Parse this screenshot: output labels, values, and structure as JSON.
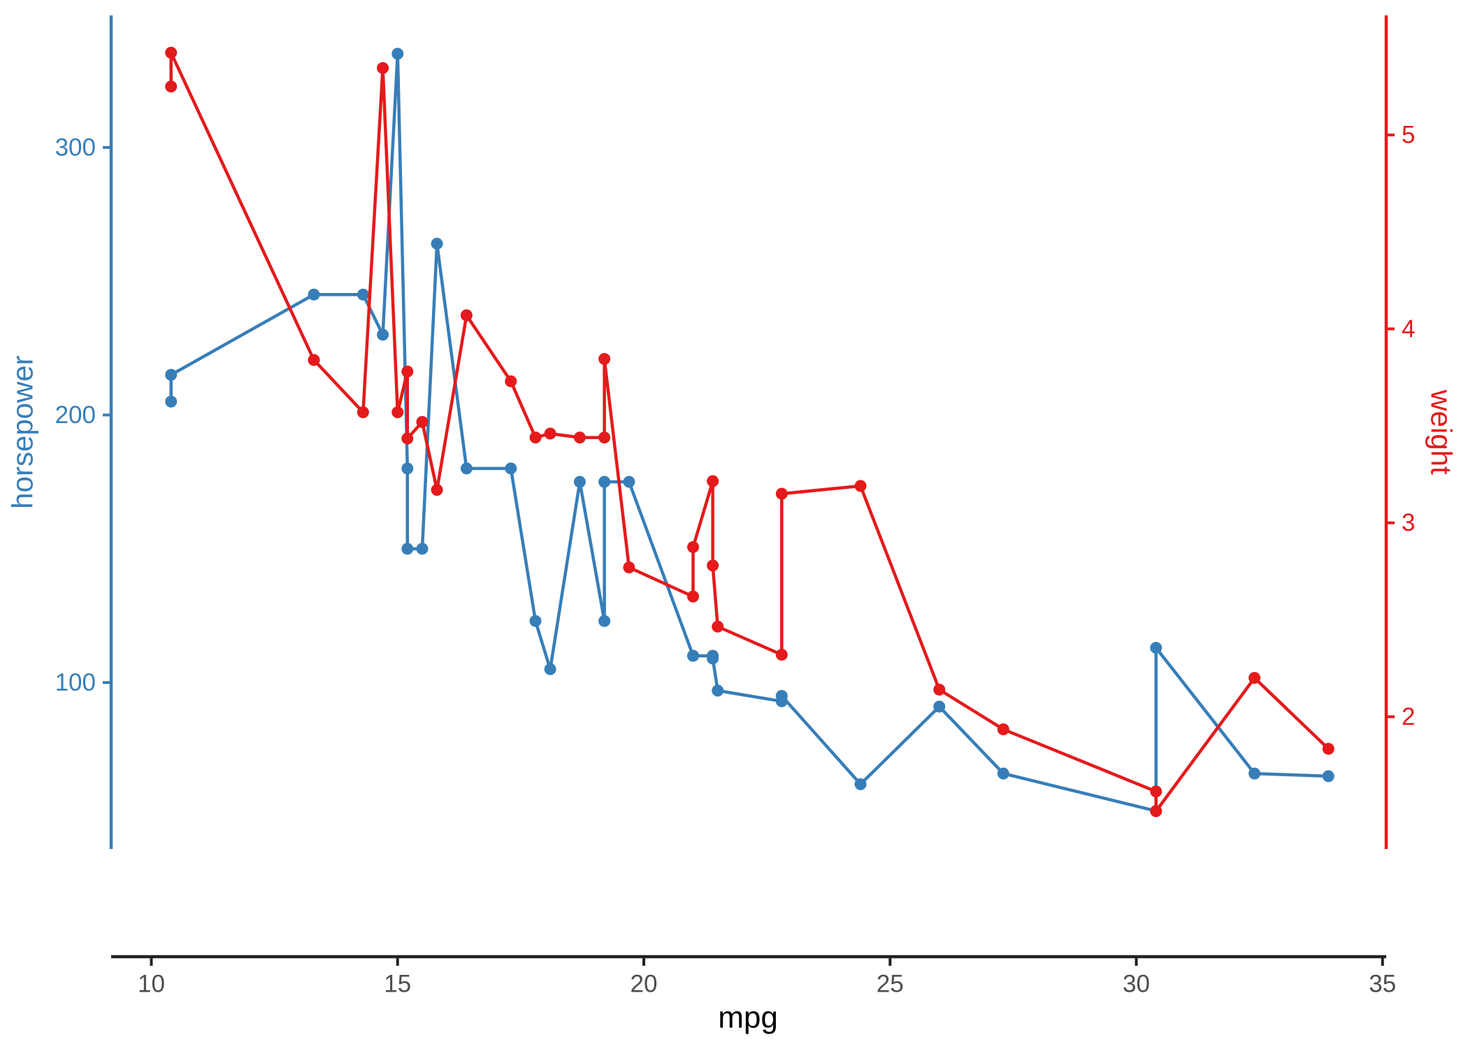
{
  "chart_data": {
    "type": "line",
    "description": "Dual-axis line+point chart of horsepower (left, blue) and weight (right, red) versus mpg",
    "x_axis": {
      "label": "mpg",
      "ticks": [
        10,
        15,
        20,
        25,
        30,
        35
      ],
      "domain": [
        9.2,
        35.1
      ],
      "line_color": "#222222",
      "tick_text_color": "#4d4d4d",
      "title_color": "#000000"
    },
    "y_axis_left": {
      "label": "horsepower",
      "ticks": [
        100,
        200,
        300
      ],
      "domain": [
        38,
        349
      ],
      "color": "#377EB8"
    },
    "y_axis_right": {
      "label": "weight",
      "ticks": [
        2,
        3,
        4,
        5
      ],
      "domain": [
        1.32,
        5.62
      ],
      "color": "#E41A1C"
    },
    "x_shared": [
      10.4,
      10.4,
      13.3,
      14.3,
      14.7,
      15.0,
      15.2,
      15.2,
      15.5,
      15.8,
      16.4,
      17.3,
      17.8,
      18.1,
      18.7,
      19.2,
      19.2,
      19.7,
      21.0,
      21.0,
      21.4,
      21.4,
      21.5,
      22.8,
      22.8,
      24.4,
      26.0,
      27.3,
      30.4,
      30.4,
      32.4,
      33.9
    ],
    "series": [
      {
        "name": "horsepower",
        "axis": "left",
        "color": "#377EB8",
        "marker": "circle",
        "values": [
          205,
          215,
          245,
          245,
          230,
          335,
          180,
          150,
          150,
          264,
          180,
          180,
          123,
          105,
          175,
          123,
          175,
          175,
          110,
          110,
          110,
          109,
          97,
          93,
          95,
          62,
          91,
          66,
          52,
          113,
          66,
          65
        ]
      },
      {
        "name": "weight",
        "axis": "right",
        "color": "#E41A1C",
        "marker": "circle",
        "values": [
          5.25,
          5.424,
          3.84,
          3.57,
          5.345,
          3.57,
          3.78,
          3.435,
          3.52,
          3.17,
          4.07,
          3.73,
          3.44,
          3.46,
          3.44,
          3.44,
          3.845,
          2.77,
          2.62,
          2.875,
          3.215,
          2.78,
          2.465,
          2.32,
          3.15,
          3.19,
          2.14,
          1.935,
          1.615,
          1.513,
          2.2,
          1.835
        ]
      }
    ],
    "legend": "none",
    "grid": "off",
    "background": "#ffffff"
  }
}
